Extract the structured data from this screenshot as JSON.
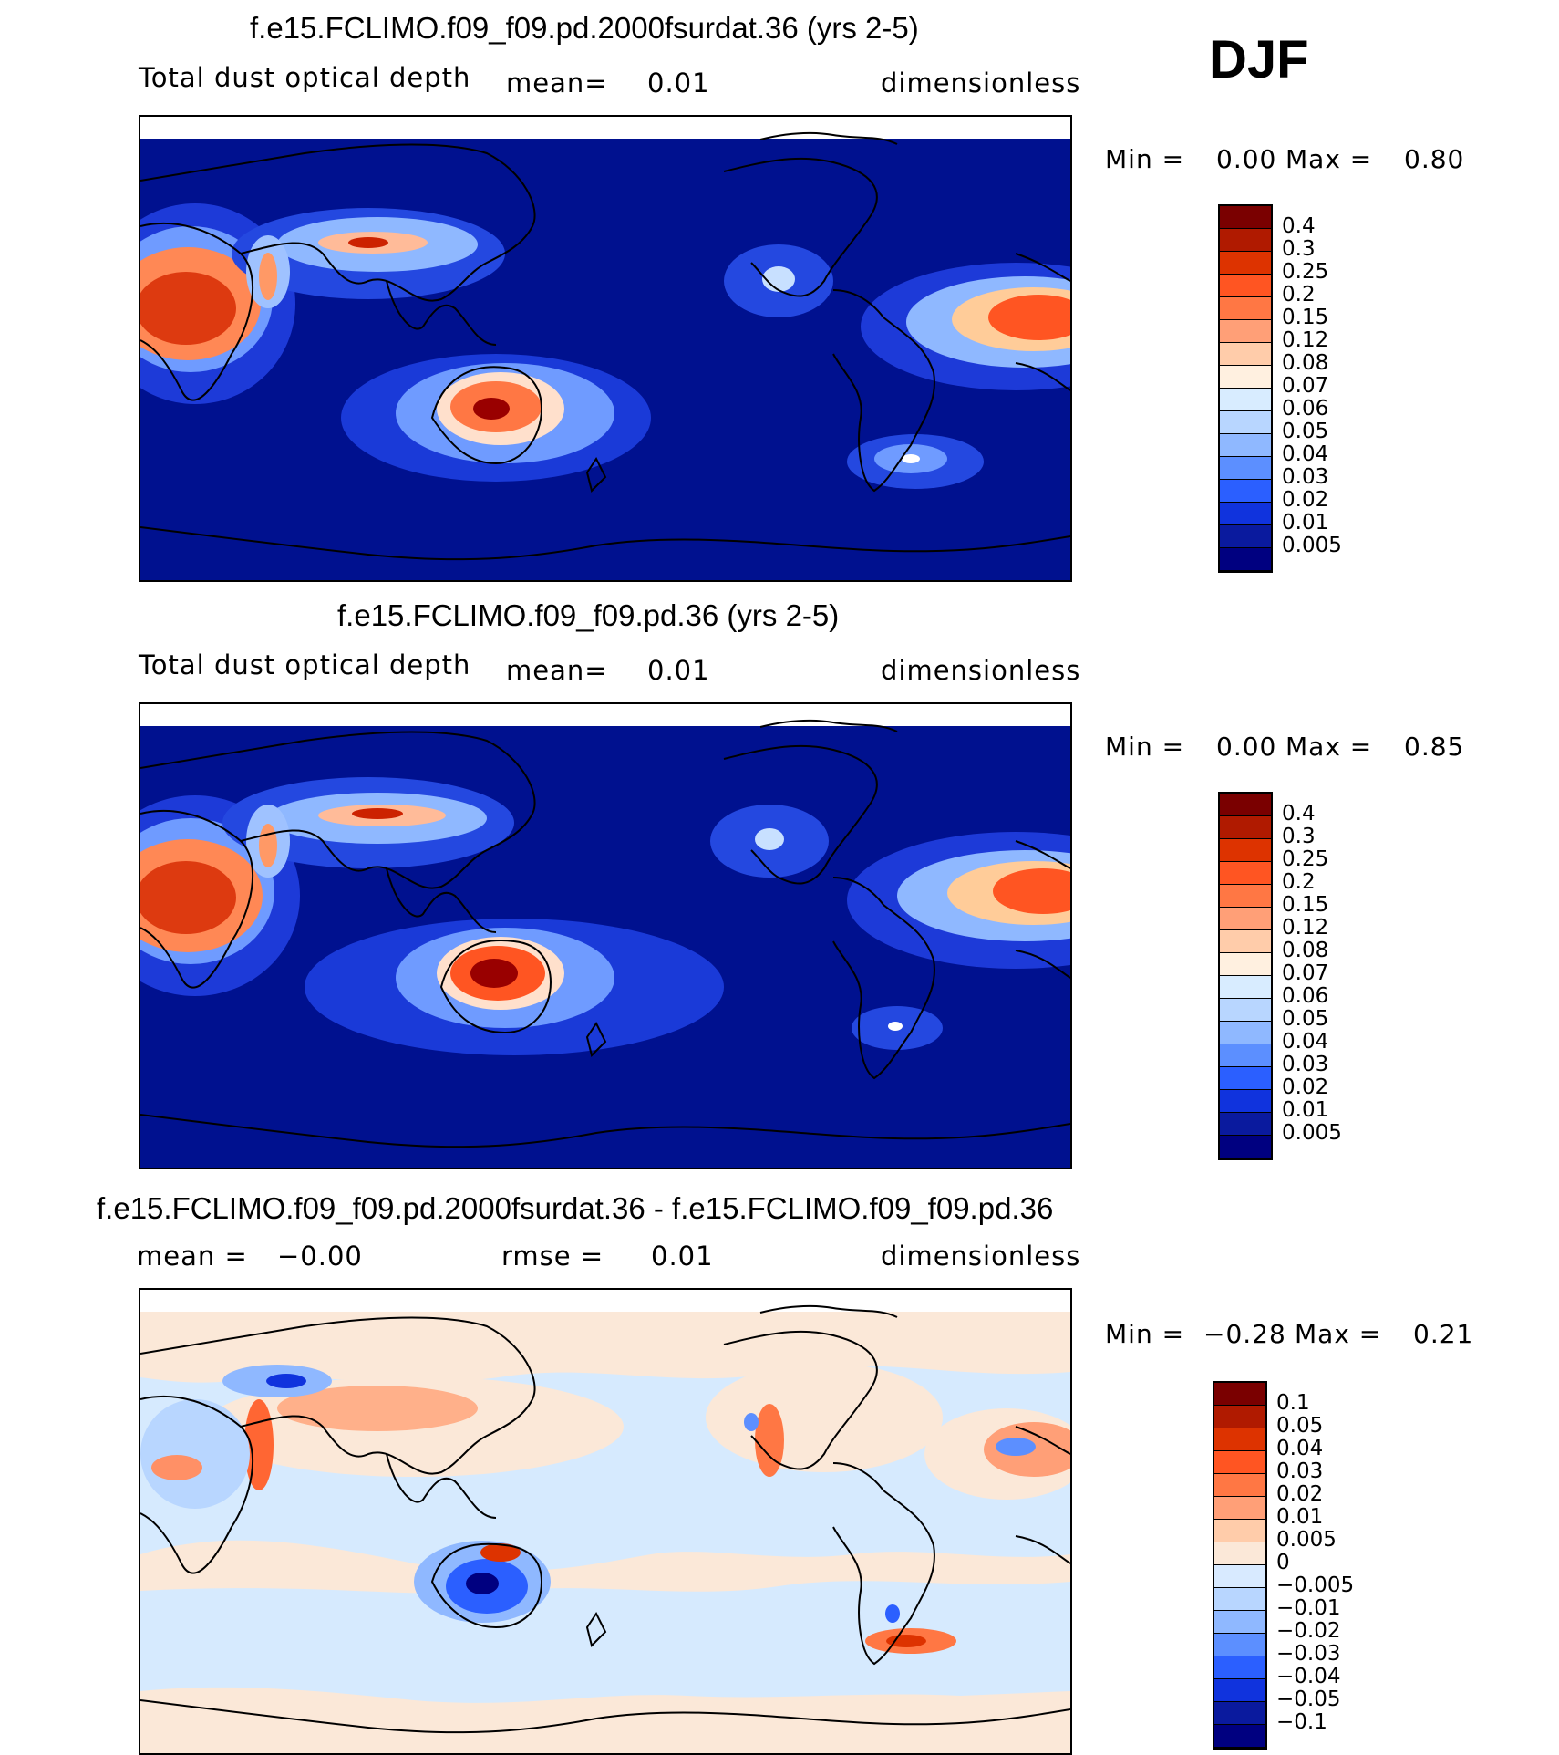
{
  "season": "DJF",
  "panels": [
    {
      "title": "f.e15.FCLIMO.f09_f09.pd.2000fsurdat.36 (yrs 2-5)",
      "variable": "Total dust optical depth",
      "mean_label": "mean=",
      "mean_value": "0.01",
      "units": "dimensionless",
      "min_label": "Min =",
      "min_value": "0.00",
      "max_label": "Max =",
      "max_value": "0.80",
      "colorbar_labels": [
        "0.4",
        "0.3",
        "0.25",
        "0.2",
        "0.15",
        "0.12",
        "0.08",
        "0.07",
        "0.06",
        "0.05",
        "0.04",
        "0.03",
        "0.02",
        "0.01",
        "0.005"
      ]
    },
    {
      "title": "f.e15.FCLIMO.f09_f09.pd.36 (yrs 2-5)",
      "variable": "Total dust optical depth",
      "mean_label": "mean=",
      "mean_value": "0.01",
      "units": "dimensionless",
      "min_label": "Min =",
      "min_value": "0.00",
      "max_label": "Max =",
      "max_value": "0.85",
      "colorbar_labels": [
        "0.4",
        "0.3",
        "0.25",
        "0.2",
        "0.15",
        "0.12",
        "0.08",
        "0.07",
        "0.06",
        "0.05",
        "0.04",
        "0.03",
        "0.02",
        "0.01",
        "0.005"
      ]
    },
    {
      "title": "f.e15.FCLIMO.f09_f09.pd.2000fsurdat.36 - f.e15.FCLIMO.f09_f09.pd.36",
      "mean_label": "mean =",
      "mean_value": "−0.00",
      "rmse_label": "rmse =",
      "rmse_value": "0.01",
      "units": "dimensionless",
      "min_label": "Min =",
      "min_value": "−0.28",
      "max_label": "Max =",
      "max_value": "0.21",
      "colorbar_labels": [
        "0.1",
        "0.05",
        "0.04",
        "0.03",
        "0.02",
        "0.01",
        "0.005",
        "0",
        "−0.005",
        "−0.01",
        "−0.02",
        "−0.03",
        "−0.04",
        "−0.05",
        "−0.1"
      ]
    }
  ],
  "colors": {
    "seq_colorbar": [
      "#7a0000",
      "#b01a00",
      "#dd3300",
      "#ff5522",
      "#ff7744",
      "#ff9f77",
      "#ffccaa",
      "#fff0e0",
      "#d8ecff",
      "#b8d6ff",
      "#8fb8ff",
      "#5c8fff",
      "#2b5fff",
      "#1033dd",
      "#0a1a9e",
      "#000080"
    ],
    "diff_colorbar": [
      "#7a0000",
      "#b01a00",
      "#dd3300",
      "#ff5522",
      "#ff7744",
      "#ff9f77",
      "#ffccaa",
      "#fbe8d8",
      "#d8eaff",
      "#b8d6ff",
      "#8fb8ff",
      "#5c8fff",
      "#2b5fff",
      "#1033dd",
      "#0a1a9e",
      "#000080"
    ],
    "map_background_seq": "#00118f",
    "map_background_diff": "#d6eafe",
    "coastline": "#000000"
  }
}
